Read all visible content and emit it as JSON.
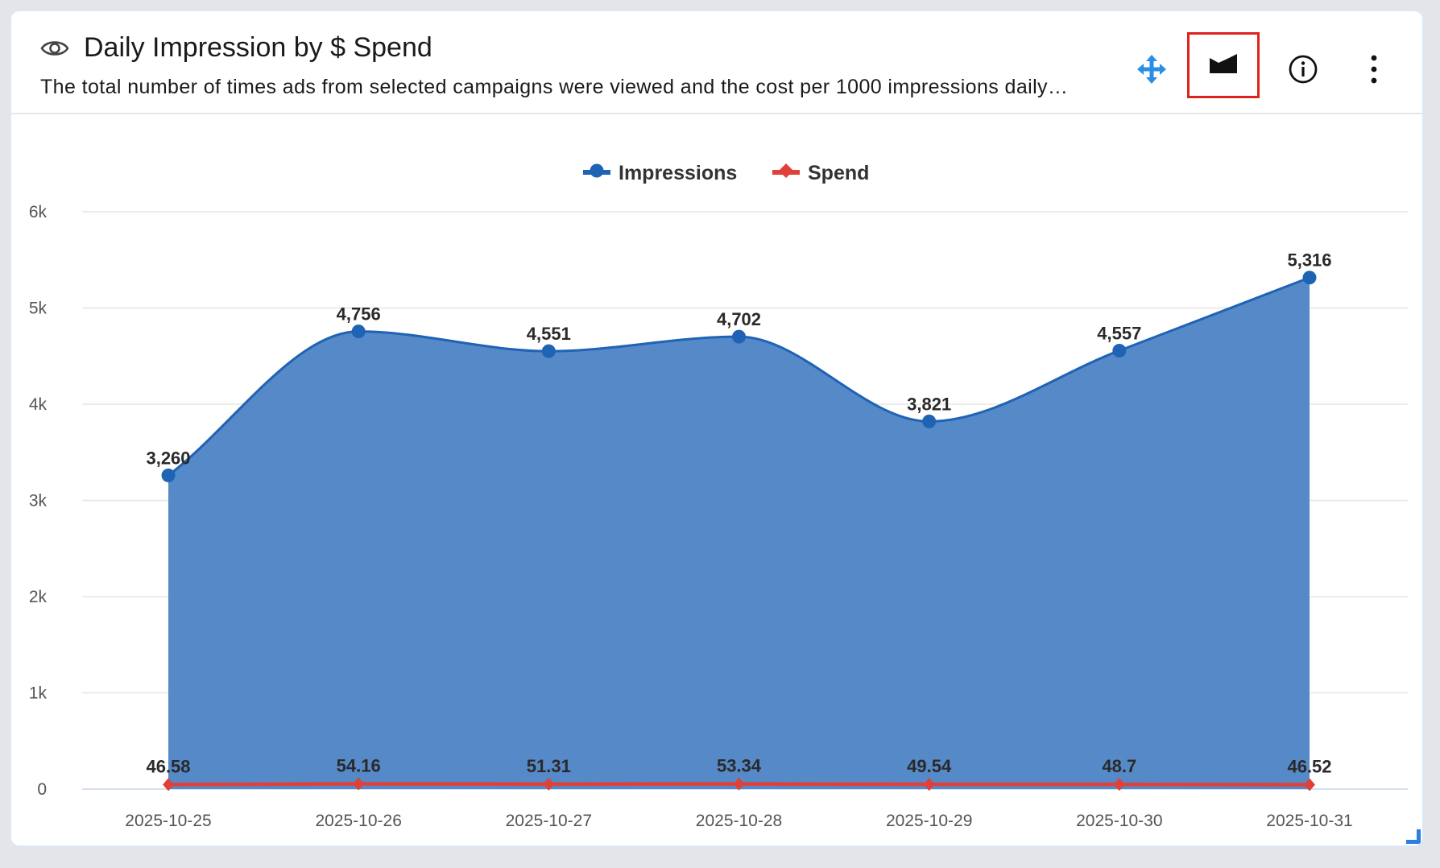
{
  "header": {
    "title": "Daily Impression by $ Spend",
    "subtitle": "The total number of times ads from selected campaigns were viewed and the cost per 1000 impressions daily…",
    "icons": {
      "title_icon": "eye-icon",
      "move": "move-arrows-icon",
      "chart_type": "area-chart-icon",
      "info": "info-icon",
      "menu": "kebab-menu-icon"
    }
  },
  "colors": {
    "impressions_line": "#1f63b5",
    "impressions_fill": "#5689c7",
    "spend_line": "#e0403a",
    "gridline": "#e6e6e6",
    "highlight_border": "#e0221c",
    "move_icon": "#2a8de8"
  },
  "chart_data": {
    "type": "area",
    "title": "Daily Impression by $ Spend",
    "xlabel": "",
    "ylabel": "",
    "categories": [
      "2025-10-25",
      "2025-10-26",
      "2025-10-27",
      "2025-10-28",
      "2025-10-29",
      "2025-10-30",
      "2025-10-31"
    ],
    "ylim": [
      0,
      6000
    ],
    "yticks": [
      0,
      1000,
      2000,
      3000,
      4000,
      5000,
      6000
    ],
    "ytick_labels": [
      "0",
      "1k",
      "2k",
      "3k",
      "4k",
      "5k",
      "6k"
    ],
    "grid": true,
    "legend_position": "top-center",
    "series": [
      {
        "name": "Impressions",
        "type": "area",
        "marker": "circle",
        "values": [
          3260,
          4756,
          4551,
          4702,
          3821,
          4557,
          5316
        ],
        "labels": [
          "3,260",
          "4,756",
          "4,551",
          "4,702",
          "3,821",
          "4,557",
          "5,316"
        ]
      },
      {
        "name": "Spend",
        "type": "line",
        "marker": "diamond",
        "values": [
          46.58,
          54.16,
          51.31,
          53.34,
          49.54,
          48.7,
          46.52
        ],
        "labels": [
          "46.58",
          "54.16",
          "51.31",
          "53.34",
          "49.54",
          "48.7",
          "46.52"
        ]
      }
    ]
  }
}
